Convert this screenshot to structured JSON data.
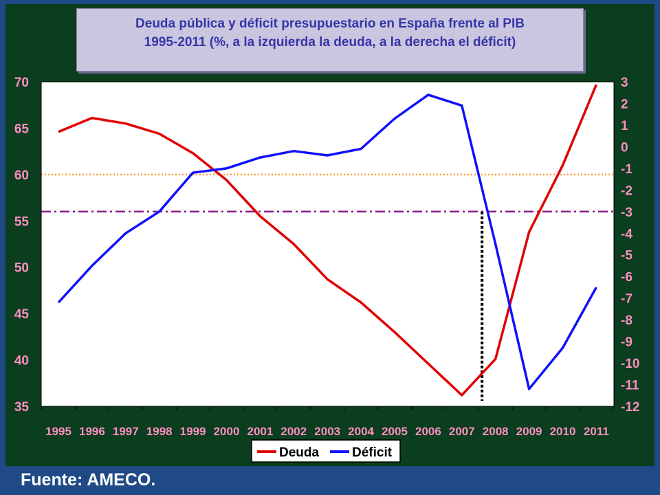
{
  "chart_data": {
    "type": "line",
    "title_line1": "Deuda pública y déficit presupuestario en España frente al PIB",
    "title_line2": "1995-2011 (%, a la izquierda la deuda, a la derecha el déficit)",
    "categories": [
      "1995",
      "1996",
      "1997",
      "1998",
      "1999",
      "2000",
      "2001",
      "2002",
      "2003",
      "2004",
      "2005",
      "2006",
      "2007",
      "2008",
      "2009",
      "2010",
      "2011"
    ],
    "y_left": {
      "min": 35,
      "max": 70,
      "ticks": [
        "70",
        "65",
        "60",
        "55",
        "50",
        "45",
        "40",
        "35"
      ]
    },
    "y_right": {
      "min": -12,
      "max": 3,
      "ticks": [
        "3",
        "2",
        "1",
        "0",
        "-1",
        "-2",
        "-3",
        "-4",
        "-5",
        "-6",
        "-7",
        "-8",
        "-9",
        "-10",
        "-11",
        "-12"
      ]
    },
    "series": [
      {
        "name": "Deuda",
        "axis": "left",
        "color": "#e00000",
        "values": [
          64.6,
          66.1,
          65.5,
          64.4,
          62.3,
          59.4,
          55.5,
          52.5,
          48.7,
          46.2,
          43.0,
          39.6,
          36.2,
          40.1,
          53.8,
          61.0,
          69.7
        ]
      },
      {
        "name": "Déficit",
        "axis": "right",
        "color": "#1010ff",
        "values": [
          -7.2,
          -5.5,
          -4.0,
          -3.0,
          -1.2,
          -1.0,
          -0.5,
          -0.2,
          -0.4,
          -0.1,
          1.3,
          2.4,
          1.9,
          -4.5,
          -11.2,
          -9.3,
          -6.5
        ]
      }
    ],
    "reference_lines": [
      {
        "name": "deuda-limit-60",
        "axis": "left",
        "value": 60,
        "style": "dotted",
        "color": "#ff9a30"
      },
      {
        "name": "deficit-limit-3",
        "axis": "right",
        "value": -3,
        "style": "dashdot",
        "color": "#8a1a8a"
      }
    ],
    "vertical_marker": {
      "name": "crossing-marker",
      "x_year": 2007.6,
      "style": "dotted",
      "color": "#000000"
    },
    "legend": {
      "position": "bottom",
      "entries": [
        "Deuda",
        "Déficit"
      ]
    }
  },
  "source": "Fuente: AMECO.",
  "colors": {
    "background": "#1f4a86",
    "plot": "#ffffff",
    "frame": "#0b3d1f",
    "tick_text": "#ff8fc0",
    "title_text": "#3535a8"
  }
}
